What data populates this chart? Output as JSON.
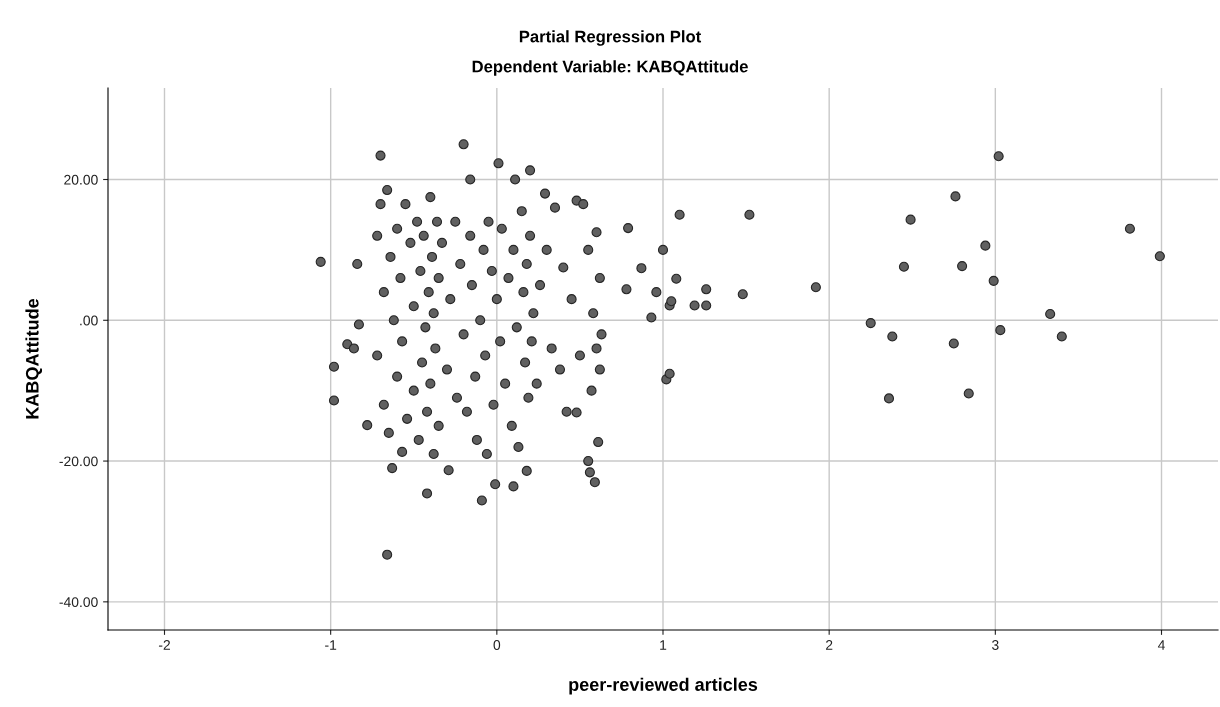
{
  "chart_data": {
    "type": "scatter",
    "title": "Partial Regression Plot",
    "subtitle": "Dependent Variable: KABQAttitude",
    "xlabel": "peer-reviewed articles",
    "ylabel": "KABQAttitude",
    "xlim": [
      -2.34,
      4.34
    ],
    "ylim": [
      -44,
      33
    ],
    "xticks": [
      -2,
      -1,
      0,
      1,
      2,
      3,
      4
    ],
    "yticks": [
      {
        "value": -40,
        "label": "-40.00"
      },
      {
        "value": -20,
        "label": "-20.00"
      },
      {
        "value": 0,
        "label": ".00"
      },
      {
        "value": 20,
        "label": "20.00"
      }
    ],
    "grid": true,
    "marker": "circle",
    "series": [
      {
        "color": "#606060",
        "x": [
          3.99,
          3.81,
          3.33,
          3.4,
          3.02,
          3.03,
          2.99,
          2.94,
          2.76,
          2.8,
          2.75,
          2.84,
          2.49,
          2.45,
          2.38,
          2.36,
          2.25,
          1.92,
          1.48,
          1.52,
          1.1,
          1.26,
          1.26,
          1.19,
          1.04,
          1.05,
          1.08,
          1.0,
          0.96,
          0.93,
          1.02,
          1.04,
          0.87,
          0.79,
          0.78,
          -1.06,
          -0.98,
          -0.98,
          -0.84,
          -0.83,
          -0.9,
          -0.86,
          -0.7,
          -0.66,
          -0.2,
          0.01,
          0.2,
          -0.16,
          0.11,
          0.29,
          -0.78,
          -0.57,
          -0.42,
          -0.29,
          -0.09,
          -0.01,
          0.1,
          0.18,
          0.56,
          0.59,
          0.61,
          0.55,
          0.48,
          -0.72,
          -0.72,
          -0.7,
          -0.68,
          -0.68,
          -0.66,
          -0.65,
          -0.64,
          -0.63,
          -0.62,
          -0.6,
          -0.6,
          -0.58,
          -0.57,
          -0.55,
          -0.54,
          -0.52,
          -0.5,
          -0.5,
          -0.48,
          -0.47,
          -0.46,
          -0.45,
          -0.44,
          -0.43,
          -0.42,
          -0.41,
          -0.4,
          -0.4,
          -0.39,
          -0.38,
          -0.38,
          -0.37,
          -0.36,
          -0.35,
          -0.35,
          -0.33,
          -0.3,
          -0.28,
          -0.25,
          -0.24,
          -0.22,
          -0.2,
          -0.18,
          -0.16,
          -0.15,
          -0.13,
          -0.12,
          -0.1,
          -0.08,
          -0.07,
          -0.06,
          -0.05,
          -0.03,
          -0.02,
          0.0,
          0.02,
          0.03,
          0.05,
          0.07,
          0.09,
          0.1,
          0.12,
          0.13,
          0.15,
          0.16,
          0.17,
          0.18,
          0.19,
          0.2,
          0.21,
          0.22,
          0.24,
          0.26,
          0.3,
          0.33,
          0.35,
          0.38,
          0.4,
          0.42,
          0.45,
          0.48,
          0.5,
          0.52,
          0.55,
          0.57,
          0.58,
          0.6,
          0.6,
          0.62,
          0.63,
          0.62
        ],
        "values": [
          9.1,
          13.0,
          0.9,
          -2.3,
          23.3,
          -1.4,
          5.6,
          10.6,
          17.6,
          7.7,
          -3.3,
          -10.4,
          14.3,
          7.6,
          -2.3,
          -11.1,
          -0.4,
          4.7,
          3.7,
          15.0,
          15.0,
          4.4,
          2.1,
          2.1,
          2.1,
          2.7,
          5.9,
          10.0,
          4.0,
          0.4,
          -8.4,
          -7.6,
          7.4,
          13.1,
          4.4,
          8.3,
          -6.6,
          -11.4,
          8.0,
          -0.6,
          -3.4,
          -4.0,
          23.4,
          -33.3,
          25.0,
          22.3,
          21.3,
          20.0,
          20.0,
          18.0,
          -14.9,
          -18.7,
          -24.6,
          -21.3,
          -25.6,
          -23.3,
          -23.6,
          -21.4,
          -21.6,
          -23.0,
          -17.3,
          -20.0,
          -13.1,
          12,
          -5,
          16.5,
          4,
          -12,
          18.5,
          -16,
          9,
          -21,
          0,
          13,
          -8,
          6,
          -3,
          16.5,
          -14,
          11,
          -10,
          2,
          14,
          -17,
          7,
          -6,
          12,
          -1,
          -13,
          4,
          17.5,
          -9,
          9,
          -19,
          1,
          -4,
          14,
          6,
          -15,
          11,
          -7,
          3,
          14,
          -11,
          8,
          -2,
          -13,
          12,
          5,
          -8,
          -17,
          0,
          10,
          -5,
          -19,
          14,
          7,
          -12,
          3,
          -3,
          13,
          -9,
          6,
          -15,
          10,
          -1,
          -18,
          15.5,
          4,
          -6,
          8,
          -11,
          12,
          -3,
          1,
          -9,
          5,
          10,
          -4,
          16,
          -7,
          7.5,
          -13,
          3,
          17,
          -5,
          16.5,
          10,
          -10,
          1,
          12.5,
          -4,
          6,
          -2,
          -7
        ]
      }
    ]
  }
}
